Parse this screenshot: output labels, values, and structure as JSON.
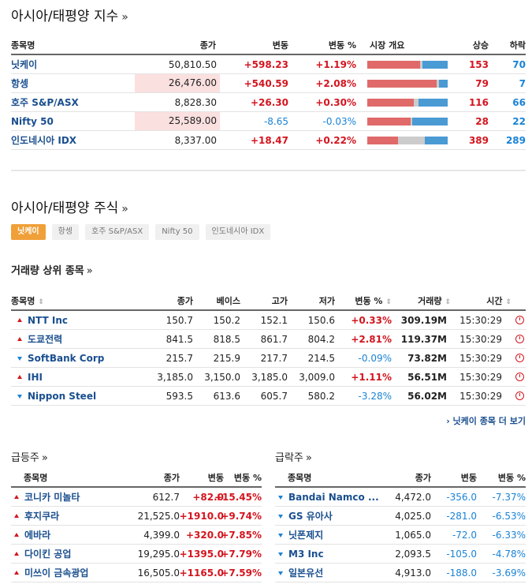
{
  "indices": {
    "title": "아시아/태평양 지수",
    "chev": "»",
    "headers": {
      "name": "종목명",
      "price": "종가",
      "change": "변동",
      "pct": "변동 %",
      "market": "시장 개요",
      "up": "상승",
      "down": "하락"
    },
    "rows": [
      {
        "name": "닛케이",
        "price": "50,810.50",
        "change": "+598.23",
        "pct": "+1.19%",
        "up": "153",
        "down": "70",
        "up_frac": 0.66,
        "flat_frac": 0.03,
        "down_frac": 0.31
      },
      {
        "name": "항셍",
        "price": "26,476.00",
        "change": "+540.59",
        "pct": "+2.08%",
        "up": "79",
        "down": "7",
        "up_frac": 0.86,
        "flat_frac": 0.03,
        "down_frac": 0.08
      },
      {
        "name": "호주 S&P/ASX",
        "price": "8,828.30",
        "change": "+26.30",
        "pct": "+0.30%",
        "up": "116",
        "down": "66",
        "up_frac": 0.58,
        "flat_frac": 0.06,
        "down_frac": 0.36
      },
      {
        "name": "Nifty 50",
        "price": "25,589.00",
        "change": "-8.65",
        "pct": "-0.03%",
        "up": "28",
        "down": "22",
        "up_frac": 0.54,
        "flat_frac": 0.02,
        "down_frac": 0.44
      },
      {
        "name": "인도네시아 IDX",
        "price": "8,337.00",
        "change": "+18.47",
        "pct": "+0.22%",
        "up": "389",
        "down": "289",
        "up_frac": 0.38,
        "flat_frac": 0.33,
        "down_frac": 0.29
      }
    ]
  },
  "stocks": {
    "title": "아시아/태평양 주식",
    "chev": "»",
    "tabs": [
      "닛케이",
      "항셍",
      "호주 S&P/ASX",
      "Nifty 50",
      "인도네시아 IDX"
    ],
    "active_tab": 0,
    "volume_title": "거래량 상위 종목",
    "volume_chev": "»",
    "headers": {
      "name": "종목명",
      "close": "종가",
      "base": "베이스",
      "high": "고가",
      "low": "저가",
      "pct": "변동 %",
      "volume": "거래량",
      "time": "시간",
      "sort": "⇕"
    },
    "rows": [
      {
        "dir": "up",
        "name": "NTT Inc",
        "close": "150.7",
        "base": "150.2",
        "high": "152.1",
        "low": "150.6",
        "pct": "+0.33%",
        "volume": "309.19M",
        "time": "15:30:29"
      },
      {
        "dir": "up",
        "name": "도쿄전력",
        "close": "841.5",
        "base": "818.5",
        "high": "861.7",
        "low": "804.2",
        "pct": "+2.81%",
        "volume": "119.37M",
        "time": "15:30:29"
      },
      {
        "dir": "down",
        "name": "SoftBank Corp",
        "close": "215.7",
        "base": "215.9",
        "high": "217.7",
        "low": "214.5",
        "pct": "-0.09%",
        "volume": "73.82M",
        "time": "15:30:29"
      },
      {
        "dir": "up",
        "name": "IHI",
        "close": "3,185.0",
        "base": "3,150.0",
        "high": "3,185.0",
        "low": "3,009.0",
        "pct": "+1.11%",
        "volume": "56.51M",
        "time": "15:30:29"
      },
      {
        "dir": "down",
        "name": "Nippon Steel",
        "close": "593.5",
        "base": "613.6",
        "high": "605.7",
        "low": "580.2",
        "pct": "-3.28%",
        "volume": "56.02M",
        "time": "15:30:29"
      }
    ],
    "more": "› 닛케이 종목 더 보기"
  },
  "gainers": {
    "title": "급등주",
    "chev": "»",
    "headers": {
      "name": "종목명",
      "price": "종가",
      "change": "변동",
      "pct": "변동 %"
    },
    "rows": [
      {
        "name": "코니카 미놀타",
        "price": "612.7",
        "change": "+82.0",
        "pct": "+15.45%"
      },
      {
        "name": "후지쿠라",
        "price": "21,525.0",
        "change": "+1910.0",
        "pct": "+9.74%"
      },
      {
        "name": "에바라",
        "price": "4,399.0",
        "change": "+320.0",
        "pct": "+7.85%"
      },
      {
        "name": "다이킨 공업",
        "price": "19,295.0",
        "change": "+1395.0",
        "pct": "+7.79%"
      },
      {
        "name": "미쓰이 금속광업",
        "price": "16,505.0",
        "change": "+1165.0",
        "pct": "+7.59%"
      }
    ]
  },
  "losers": {
    "title": "급락주",
    "chev": "»",
    "headers": {
      "name": "종목명",
      "price": "종가",
      "change": "변동",
      "pct": "변동 %"
    },
    "rows": [
      {
        "name": "Bandai Namco ...",
        "price": "4,472.0",
        "change": "-356.0",
        "pct": "-7.37%"
      },
      {
        "name": "GS 유아사",
        "price": "4,025.0",
        "change": "-281.0",
        "pct": "-6.53%"
      },
      {
        "name": "닛폰제지",
        "price": "1,065.0",
        "change": "-72.0",
        "pct": "-6.33%"
      },
      {
        "name": "M3 Inc",
        "price": "2,093.5",
        "change": "-105.0",
        "pct": "-4.78%"
      },
      {
        "name": "일본유선",
        "price": "4,913.0",
        "change": "-188.0",
        "pct": "-3.69%"
      }
    ]
  },
  "colors": {
    "up": "#d4151f",
    "down": "#1a83d6",
    "flat": "#cccccc",
    "bar_up": "#e06a6a",
    "bar_down": "#4a9ad4",
    "highlight": "#fbe0e0",
    "tab_active": "#f0a038"
  }
}
